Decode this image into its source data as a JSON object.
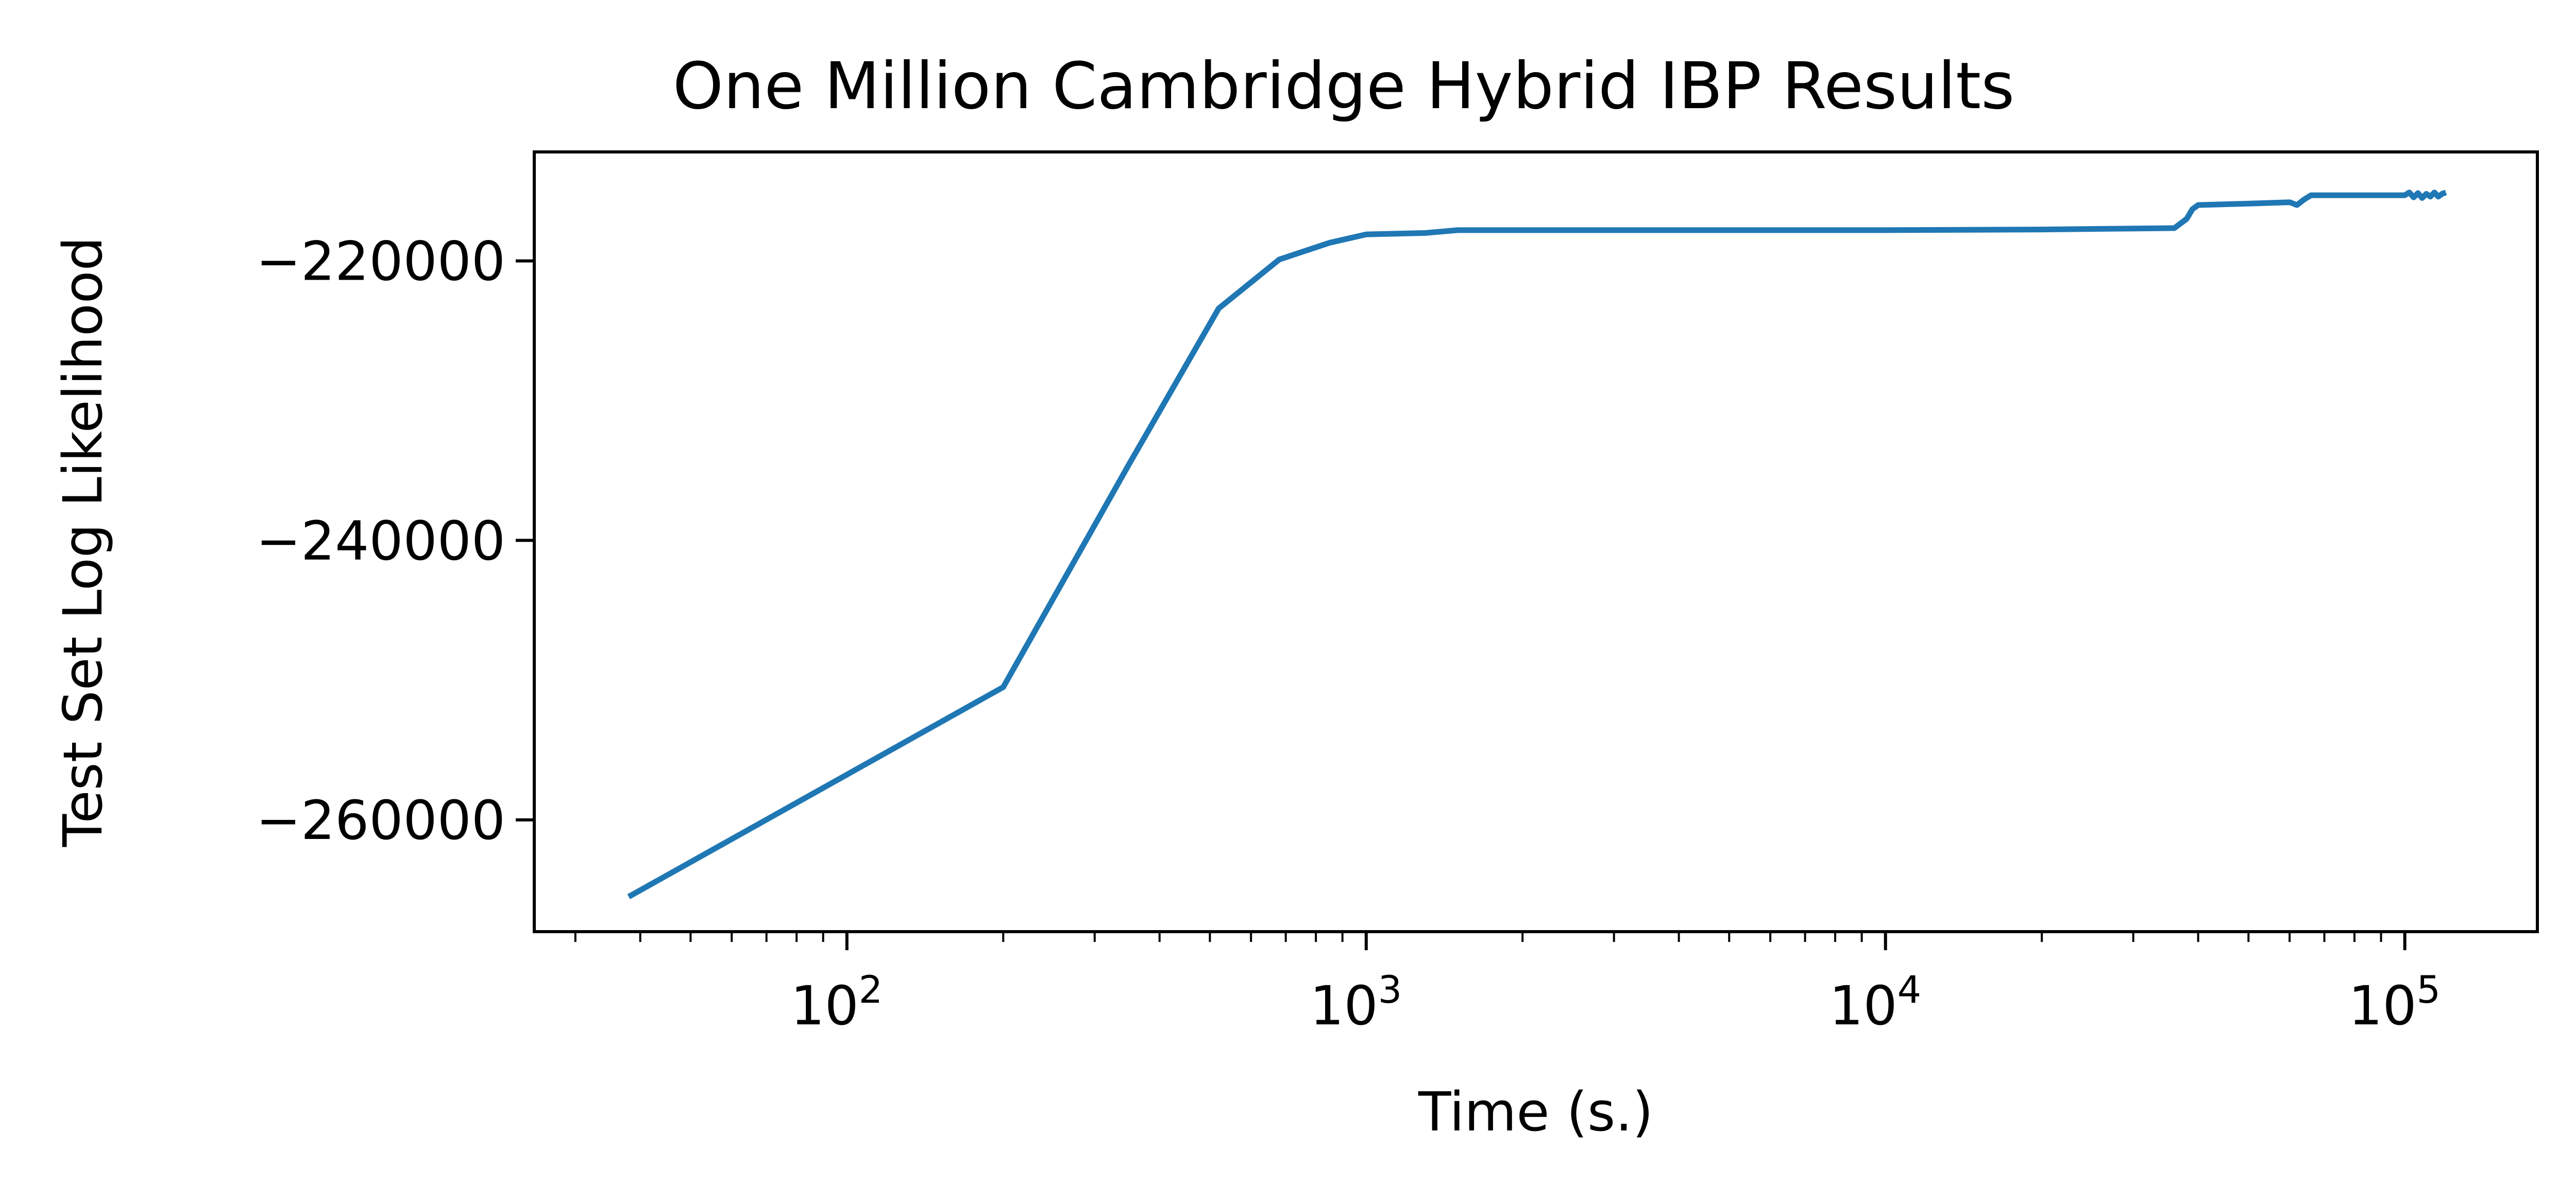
{
  "chart_data": {
    "type": "line",
    "title": "One Million Cambridge Hybrid IBP Results",
    "xlabel": "Time (s.)",
    "ylabel": "Test Set Log Likelihood",
    "xscale": "log",
    "xlim": [
      25,
      180000
    ],
    "ylim": [
      -268000,
      -212200
    ],
    "grid": false,
    "x_ticks": [
      {
        "base": "10",
        "exp": "2",
        "value": 100
      },
      {
        "base": "10",
        "exp": "3",
        "value": 1000
      },
      {
        "base": "10",
        "exp": "4",
        "value": 10000
      },
      {
        "base": "10",
        "exp": "5",
        "value": 100000
      }
    ],
    "y_ticks": [
      {
        "label": "−220000",
        "value": -220000
      },
      {
        "label": "−240000",
        "value": -240000
      },
      {
        "label": "−260000",
        "value": -260000
      }
    ],
    "series": [
      {
        "color": "#1f77b4",
        "x": [
          38,
          200,
          350,
          520,
          680,
          850,
          1000,
          1300,
          1500,
          3000,
          10000,
          20000,
          36000,
          38000,
          39000,
          40000,
          50000,
          60000,
          62000,
          64000,
          66000,
          80000,
          100000,
          102000,
          104000,
          106000,
          108000,
          110000,
          112000,
          114000,
          116000,
          118000,
          120000
        ],
        "y": [
          -265500,
          -250500,
          -234500,
          -223400,
          -219900,
          -218700,
          -218100,
          -218000,
          -217800,
          -217800,
          -217800,
          -217750,
          -217650,
          -217000,
          -216300,
          -216000,
          -215900,
          -215800,
          -216000,
          -215600,
          -215300,
          -215300,
          -215300,
          -215100,
          -215450,
          -215150,
          -215500,
          -215200,
          -215400,
          -215100,
          -215400,
          -215200,
          -215100
        ]
      }
    ]
  }
}
